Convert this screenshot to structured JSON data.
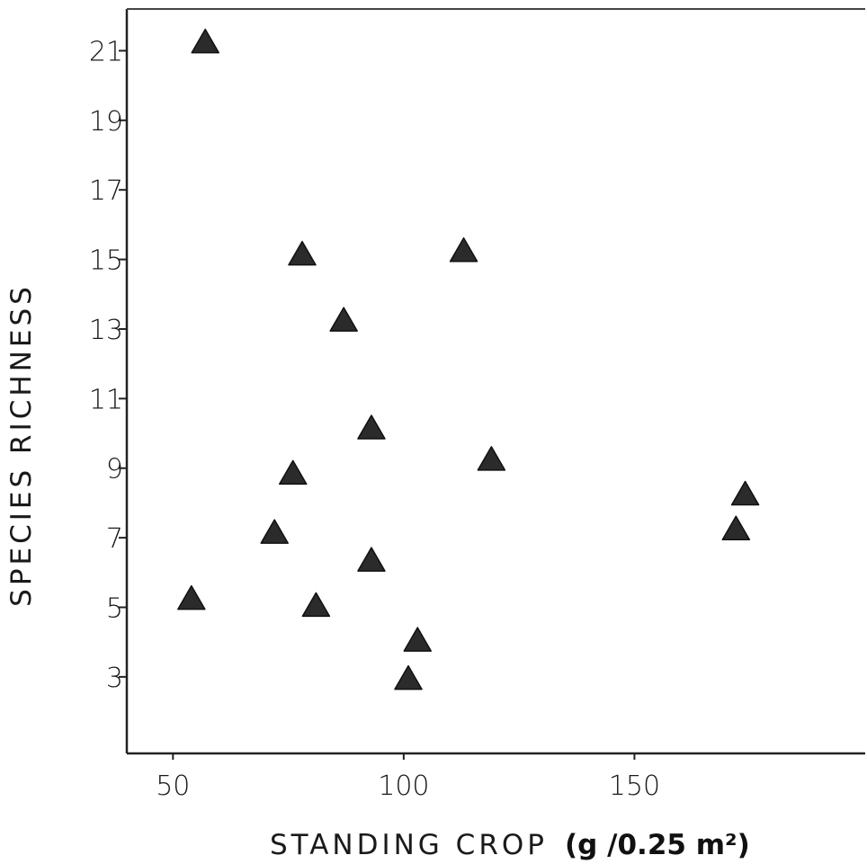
{
  "chart_data": {
    "type": "scatter",
    "marker": "filled-triangle",
    "marker_color": "#2b2b2b",
    "xlabel": "STANDING CROP",
    "xunit": "(g /0.25 m²)",
    "ylabel": "SPECIES RICHNESS",
    "xlim": [
      40,
      200
    ],
    "ylim": [
      0.8,
      22.2
    ],
    "xticks": [
      50,
      100,
      150
    ],
    "yticks": [
      3,
      5,
      7,
      9,
      11,
      13,
      15,
      17,
      19,
      21
    ],
    "grid": false,
    "points": [
      {
        "x": 57,
        "y": 21.2
      },
      {
        "x": 78,
        "y": 15.1
      },
      {
        "x": 113,
        "y": 15.2
      },
      {
        "x": 87,
        "y": 13.2
      },
      {
        "x": 93,
        "y": 10.1
      },
      {
        "x": 76,
        "y": 8.8
      },
      {
        "x": 119,
        "y": 9.2
      },
      {
        "x": 72,
        "y": 7.1
      },
      {
        "x": 93,
        "y": 6.3
      },
      {
        "x": 54,
        "y": 5.2
      },
      {
        "x": 81,
        "y": 5.0
      },
      {
        "x": 103,
        "y": 4.0
      },
      {
        "x": 101,
        "y": 2.9
      },
      {
        "x": 172,
        "y": 7.2
      },
      {
        "x": 174,
        "y": 8.2
      }
    ]
  }
}
